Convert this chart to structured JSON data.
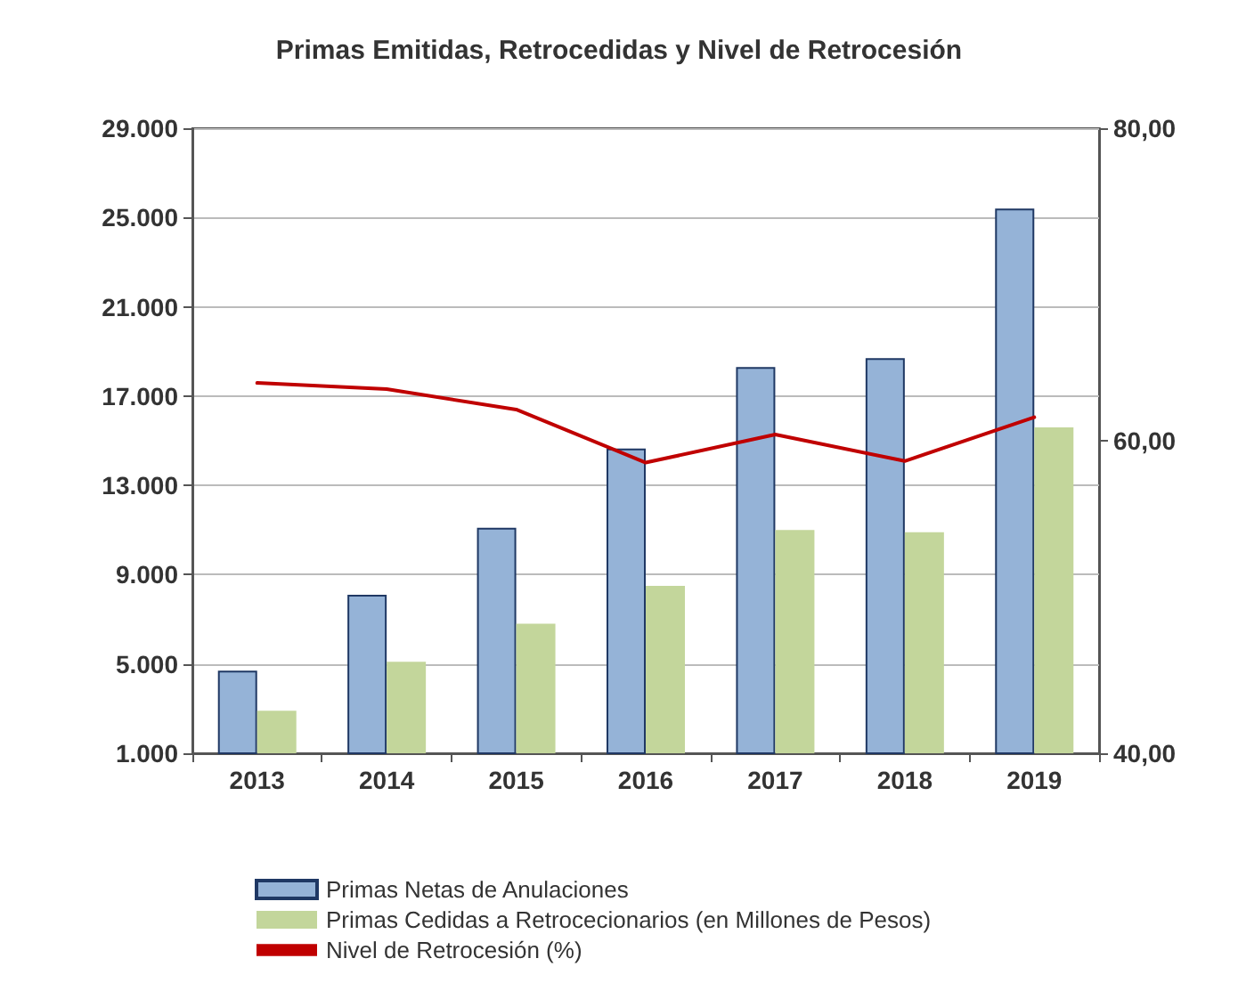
{
  "chart_data": {
    "type": "bar",
    "title": "Primas Emitidas, Retrocedidas y Nivel de Retrocesión",
    "categories": [
      "2013",
      "2014",
      "2015",
      "2016",
      "2017",
      "2018",
      "2019"
    ],
    "series": [
      {
        "name": "Primas Netas de Anulaciones",
        "color": "#95b3d7",
        "values": [
          4700,
          8100,
          11100,
          14650,
          18300,
          18700,
          25400
        ]
      },
      {
        "name": "Primas Cedidas a Retrocecionarios (en Millones de Pesos)",
        "color": "#c3d69b",
        "values": [
          2900,
          5100,
          6800,
          8500,
          11000,
          10900,
          15600
        ]
      },
      {
        "name": "Nivel de Retrocesión (%)",
        "type": "line",
        "axis": "y2",
        "color": "#c00000",
        "marker": "none",
        "values": [
          63.7,
          63.3,
          62.0,
          58.6,
          60.4,
          58.7,
          61.5
        ]
      }
    ],
    "ylim": [
      1000,
      29000
    ],
    "yticks": [
      {
        "value": 1000,
        "label": "1.000"
      },
      {
        "value": 5000,
        "label": "5.000"
      },
      {
        "value": 9000,
        "label": "9.000"
      },
      {
        "value": 13000,
        "label": "13.000"
      },
      {
        "value": 17000,
        "label": "17.000"
      },
      {
        "value": 21000,
        "label": "21.000"
      },
      {
        "value": 25000,
        "label": "25.000"
      },
      {
        "value": 29000,
        "label": "29.000"
      }
    ],
    "y2lim": [
      40,
      80
    ],
    "y2ticks": [
      {
        "value": 40,
        "label": "40,00"
      },
      {
        "value": 60,
        "label": "60,00"
      },
      {
        "value": 80,
        "label": "80,00"
      }
    ],
    "grid": "y",
    "legend": "bottom"
  }
}
